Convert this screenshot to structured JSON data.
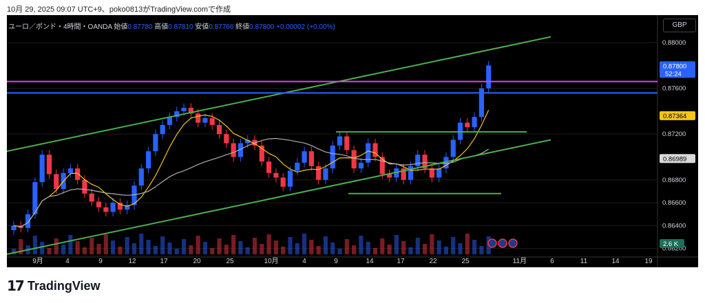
{
  "header": {
    "caption": "10月 29, 2025 09:07 UTC+9、poko0813がTradingView.comで作成"
  },
  "info": {
    "symbol": "ユーロ／ポンド・4時間・OANDA",
    "open_label": "始値",
    "open": "0.87780",
    "high_label": "高値",
    "high": "0.87810",
    "low_label": "安値",
    "low": "0.87766",
    "close_label": "終値",
    "close": "0.87800",
    "change": "+0.00002 (+0.00%)"
  },
  "currency_button": "GBP",
  "logo": {
    "text": "TradingView",
    "icon": "tradingview-logo-icon"
  },
  "colors": {
    "up": "#2962ff",
    "down": "#f23645",
    "channel": "#4caf50",
    "ma_fast": "#f5c518",
    "ma_slow": "#b0b0b0",
    "magenta": "#e040fb",
    "blue_line": "#2962ff"
  },
  "chart_data": {
    "type": "candlestick",
    "ylim": [
      0.8615,
      0.8812
    ],
    "y_ticks": [
      "0.88000",
      "0.87600",
      "0.87200",
      "0.86800",
      "0.86600",
      "0.86400",
      "0.86200"
    ],
    "y_tick_values": [
      0.88,
      0.876,
      0.872,
      0.868,
      0.866,
      0.864,
      0.862
    ],
    "x_ticks": [
      "9月",
      "4",
      "9",
      "12",
      "17",
      "20",
      "25",
      "10月",
      "4",
      "9",
      "14",
      "17",
      "22",
      "25",
      "11月",
      "6",
      "11",
      "14",
      "19"
    ],
    "price_labels": [
      {
        "text": "0.87800",
        "sub": "52:24",
        "value": 0.878,
        "kind": "last"
      },
      {
        "text": "0.87364",
        "value": 0.87364,
        "kind": "ma"
      },
      {
        "text": "0.86989",
        "value": 0.86989,
        "kind": "ma2"
      }
    ],
    "volume_label": "2.6 K",
    "horizontal_lines": [
      {
        "value": 0.8766,
        "color": "magenta"
      },
      {
        "value": 0.8756,
        "color": "blue"
      }
    ],
    "channel_upper": {
      "x": [
        "9月",
        "11月"
      ],
      "y": [
        0.8705,
        0.8805
      ]
    },
    "channel_lower": {
      "x": [
        "9月",
        "11月"
      ],
      "y": [
        0.8615,
        0.8715
      ]
    },
    "range_top": {
      "y": 0.8722
    },
    "range_bottom": {
      "y": 0.8668
    },
    "close_path": [
      0.864,
      0.8638,
      0.865,
      0.8678,
      0.8702,
      0.8685,
      0.8672,
      0.8686,
      0.869,
      0.868,
      0.8668,
      0.8661,
      0.8656,
      0.8652,
      0.866,
      0.8654,
      0.8658,
      0.8675,
      0.869,
      0.8705,
      0.872,
      0.8728,
      0.8735,
      0.874,
      0.8743,
      0.8738,
      0.873,
      0.8734,
      0.8728,
      0.872,
      0.8712,
      0.87,
      0.8712,
      0.8715,
      0.871,
      0.8696,
      0.8686,
      0.8682,
      0.8674,
      0.8688,
      0.8695,
      0.8705,
      0.8692,
      0.868,
      0.869,
      0.871,
      0.8718,
      0.8706,
      0.869,
      0.8695,
      0.8712,
      0.87,
      0.8685,
      0.8682,
      0.869,
      0.868,
      0.8692,
      0.8702,
      0.869,
      0.8682,
      0.869,
      0.87,
      0.8715,
      0.873,
      0.8726,
      0.8735,
      0.876,
      0.878
    ]
  }
}
